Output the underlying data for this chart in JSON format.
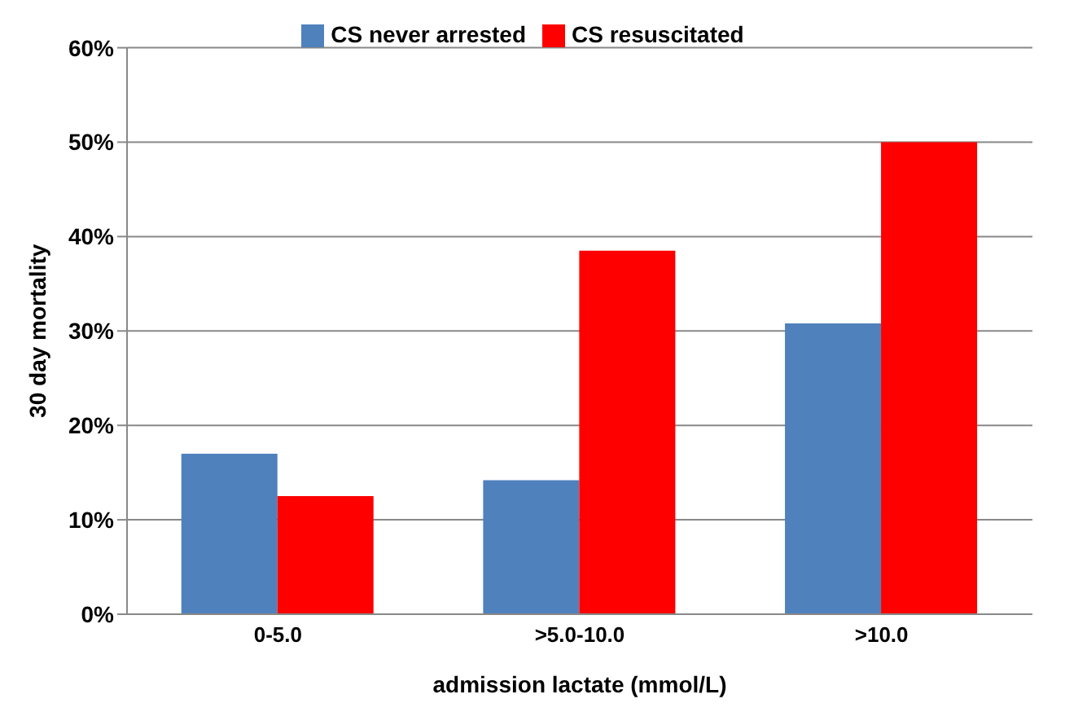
{
  "chart_data": {
    "type": "bar",
    "xlabel": "admission lactate (mmol/L)",
    "ylabel": "30 day mortality",
    "categories": [
      "0-5.0",
      ">5.0-10.0",
      ">10.0"
    ],
    "series": [
      {
        "name": "CS never arrested",
        "color": "#4f81bd",
        "values": [
          17,
          14.2,
          30.8
        ]
      },
      {
        "name": "CS resuscitated",
        "color": "#ff0000",
        "values": [
          12.5,
          38.5,
          50
        ]
      }
    ],
    "ylim": [
      0,
      60
    ],
    "yticks": [
      {
        "value": 0,
        "label": "0%"
      },
      {
        "value": 10,
        "label": "10%"
      },
      {
        "value": 20,
        "label": "20%"
      },
      {
        "value": 30,
        "label": "30%"
      },
      {
        "value": 40,
        "label": "40%"
      },
      {
        "value": 50,
        "label": "50%"
      },
      {
        "value": 60,
        "label": "60%"
      }
    ],
    "grid": "y",
    "legend": "top"
  }
}
